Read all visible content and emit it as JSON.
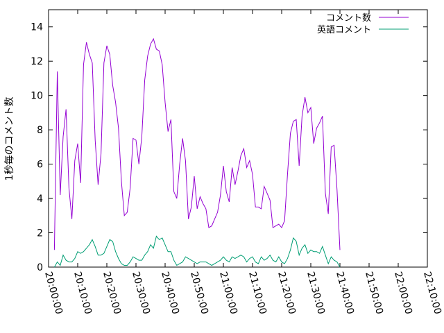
{
  "chart_data": {
    "type": "line",
    "title": "",
    "xlabel": "",
    "ylabel": "1秒毎のコメント数",
    "xlim": [
      "20:00:00",
      "22:10:00"
    ],
    "ylim": [
      0,
      15
    ],
    "x_ticks": [
      "20:00:00",
      "20:10:00",
      "20:20:00",
      "20:30:00",
      "20:40:00",
      "20:50:00",
      "21:00:00",
      "21:10:00",
      "21:20:00",
      "21:30:00",
      "21:40:00",
      "21:50:00",
      "22:00:00",
      "22:10:00"
    ],
    "y_ticks": [
      0,
      2,
      4,
      6,
      8,
      10,
      12,
      14
    ],
    "grid": false,
    "legend_position": "top-right",
    "series": [
      {
        "name": "コメント数",
        "color": "#9400d3",
        "points": [
          [
            "20:02:00",
            1.0
          ],
          [
            "20:03:00",
            11.4
          ],
          [
            "20:04:00",
            4.2
          ],
          [
            "20:05:00",
            7.6
          ],
          [
            "20:06:00",
            9.2
          ],
          [
            "20:07:00",
            4.6
          ],
          [
            "20:08:00",
            2.8
          ],
          [
            "20:09:00",
            6.2
          ],
          [
            "20:10:00",
            7.2
          ],
          [
            "20:11:00",
            4.9
          ],
          [
            "20:12:00",
            11.8
          ],
          [
            "20:13:00",
            13.1
          ],
          [
            "20:14:00",
            12.4
          ],
          [
            "20:15:00",
            11.9
          ],
          [
            "20:16:00",
            7.4
          ],
          [
            "20:17:00",
            4.8
          ],
          [
            "20:18:00",
            6.6
          ],
          [
            "20:19:00",
            11.9
          ],
          [
            "20:20:00",
            12.9
          ],
          [
            "20:21:00",
            12.4
          ],
          [
            "20:22:00",
            10.6
          ],
          [
            "20:23:00",
            9.6
          ],
          [
            "20:24:00",
            8.1
          ],
          [
            "20:25:00",
            5.0
          ],
          [
            "20:26:00",
            3.0
          ],
          [
            "20:27:00",
            3.2
          ],
          [
            "20:28:00",
            4.6
          ],
          [
            "20:29:00",
            7.5
          ],
          [
            "20:30:00",
            7.4
          ],
          [
            "20:31:00",
            6.0
          ],
          [
            "20:32:00",
            7.6
          ],
          [
            "20:33:00",
            10.9
          ],
          [
            "20:34:00",
            12.3
          ],
          [
            "20:35:00",
            13.0
          ],
          [
            "20:36:00",
            13.3
          ],
          [
            "20:37:00",
            12.7
          ],
          [
            "20:38:00",
            12.6
          ],
          [
            "20:39:00",
            11.8
          ],
          [
            "20:40:00",
            9.6
          ],
          [
            "20:41:00",
            7.9
          ],
          [
            "20:42:00",
            8.6
          ],
          [
            "20:43:00",
            4.4
          ],
          [
            "20:44:00",
            4.0
          ],
          [
            "20:45:00",
            6.0
          ],
          [
            "20:46:00",
            7.5
          ],
          [
            "20:47:00",
            6.2
          ],
          [
            "20:48:00",
            2.8
          ],
          [
            "20:49:00",
            3.5
          ],
          [
            "20:50:00",
            5.3
          ],
          [
            "20:51:00",
            3.4
          ],
          [
            "20:52:00",
            4.1
          ],
          [
            "20:53:00",
            3.7
          ],
          [
            "20:54:00",
            3.4
          ],
          [
            "20:55:00",
            2.3
          ],
          [
            "20:56:00",
            2.4
          ],
          [
            "20:57:00",
            2.8
          ],
          [
            "20:58:00",
            3.2
          ],
          [
            "20:59:00",
            4.2
          ],
          [
            "21:00:00",
            5.9
          ],
          [
            "21:01:00",
            4.4
          ],
          [
            "21:02:00",
            3.8
          ],
          [
            "21:03:00",
            5.8
          ],
          [
            "21:04:00",
            4.8
          ],
          [
            "21:05:00",
            5.6
          ],
          [
            "21:06:00",
            6.5
          ],
          [
            "21:07:00",
            6.9
          ],
          [
            "21:08:00",
            5.8
          ],
          [
            "21:09:00",
            6.2
          ],
          [
            "21:10:00",
            5.4
          ],
          [
            "21:11:00",
            3.5
          ],
          [
            "21:12:00",
            3.5
          ],
          [
            "21:13:00",
            3.4
          ],
          [
            "21:14:00",
            4.7
          ],
          [
            "21:15:00",
            4.3
          ],
          [
            "21:16:00",
            3.9
          ],
          [
            "21:17:00",
            2.3
          ],
          [
            "21:18:00",
            2.4
          ],
          [
            "21:19:00",
            2.5
          ],
          [
            "21:20:00",
            2.3
          ],
          [
            "21:21:00",
            2.7
          ],
          [
            "21:22:00",
            5.4
          ],
          [
            "21:23:00",
            7.8
          ],
          [
            "21:24:00",
            8.5
          ],
          [
            "21:25:00",
            8.6
          ],
          [
            "21:26:00",
            5.9
          ],
          [
            "21:27:00",
            8.8
          ],
          [
            "21:28:00",
            9.9
          ],
          [
            "21:29:00",
            9.0
          ],
          [
            "21:30:00",
            9.3
          ],
          [
            "21:31:00",
            7.2
          ],
          [
            "21:32:00",
            8.1
          ],
          [
            "21:33:00",
            8.4
          ],
          [
            "21:34:00",
            8.8
          ],
          [
            "21:35:00",
            4.3
          ],
          [
            "21:36:00",
            3.1
          ],
          [
            "21:37:00",
            7.0
          ],
          [
            "21:38:00",
            7.1
          ],
          [
            "21:39:00",
            4.5
          ],
          [
            "21:40:00",
            1.0
          ]
        ]
      },
      {
        "name": "英語コメント",
        "color": "#009e73",
        "points": [
          [
            "20:02:00",
            0.0
          ],
          [
            "20:03:00",
            0.3
          ],
          [
            "20:04:00",
            0.1
          ],
          [
            "20:05:00",
            0.7
          ],
          [
            "20:06:00",
            0.4
          ],
          [
            "20:07:00",
            0.3
          ],
          [
            "20:08:00",
            0.3
          ],
          [
            "20:09:00",
            0.5
          ],
          [
            "20:10:00",
            0.9
          ],
          [
            "20:11:00",
            0.8
          ],
          [
            "20:12:00",
            0.9
          ],
          [
            "20:13:00",
            1.1
          ],
          [
            "20:14:00",
            1.3
          ],
          [
            "20:15:00",
            1.6
          ],
          [
            "20:16:00",
            1.2
          ],
          [
            "20:17:00",
            0.7
          ],
          [
            "20:18:00",
            0.7
          ],
          [
            "20:19:00",
            0.8
          ],
          [
            "20:20:00",
            1.2
          ],
          [
            "20:21:00",
            1.6
          ],
          [
            "20:22:00",
            1.5
          ],
          [
            "20:23:00",
            0.9
          ],
          [
            "20:24:00",
            0.5
          ],
          [
            "20:25:00",
            0.2
          ],
          [
            "20:26:00",
            0.1
          ],
          [
            "20:27:00",
            0.1
          ],
          [
            "20:28:00",
            0.3
          ],
          [
            "20:29:00",
            0.6
          ],
          [
            "20:30:00",
            0.5
          ],
          [
            "20:31:00",
            0.4
          ],
          [
            "20:32:00",
            0.4
          ],
          [
            "20:33:00",
            0.7
          ],
          [
            "20:34:00",
            0.9
          ],
          [
            "20:35:00",
            1.3
          ],
          [
            "20:36:00",
            1.1
          ],
          [
            "20:37:00",
            1.8
          ],
          [
            "20:38:00",
            1.6
          ],
          [
            "20:39:00",
            1.7
          ],
          [
            "20:40:00",
            1.3
          ],
          [
            "20:41:00",
            0.9
          ],
          [
            "20:42:00",
            0.9
          ],
          [
            "20:43:00",
            0.4
          ],
          [
            "20:44:00",
            0.1
          ],
          [
            "20:45:00",
            0.2
          ],
          [
            "20:46:00",
            0.3
          ],
          [
            "20:47:00",
            0.6
          ],
          [
            "20:48:00",
            0.5
          ],
          [
            "20:49:00",
            0.4
          ],
          [
            "20:50:00",
            0.3
          ],
          [
            "20:51:00",
            0.2
          ],
          [
            "20:52:00",
            0.3
          ],
          [
            "20:53:00",
            0.3
          ],
          [
            "20:54:00",
            0.3
          ],
          [
            "20:55:00",
            0.2
          ],
          [
            "20:56:00",
            0.1
          ],
          [
            "20:57:00",
            0.2
          ],
          [
            "20:58:00",
            0.3
          ],
          [
            "20:59:00",
            0.4
          ],
          [
            "21:00:00",
            0.6
          ],
          [
            "21:01:00",
            0.4
          ],
          [
            "21:02:00",
            0.3
          ],
          [
            "21:03:00",
            0.6
          ],
          [
            "21:04:00",
            0.5
          ],
          [
            "21:05:00",
            0.6
          ],
          [
            "21:06:00",
            0.7
          ],
          [
            "21:07:00",
            0.6
          ],
          [
            "21:08:00",
            0.3
          ],
          [
            "21:09:00",
            0.5
          ],
          [
            "21:10:00",
            0.6
          ],
          [
            "21:11:00",
            0.3
          ],
          [
            "21:12:00",
            0.2
          ],
          [
            "21:13:00",
            0.6
          ],
          [
            "21:14:00",
            0.4
          ],
          [
            "21:15:00",
            0.5
          ],
          [
            "21:16:00",
            0.7
          ],
          [
            "21:17:00",
            0.4
          ],
          [
            "21:18:00",
            0.3
          ],
          [
            "21:19:00",
            0.6
          ],
          [
            "21:20:00",
            0.3
          ],
          [
            "21:21:00",
            0.2
          ],
          [
            "21:22:00",
            0.5
          ],
          [
            "21:23:00",
            1.0
          ],
          [
            "21:24:00",
            1.7
          ],
          [
            "21:25:00",
            1.5
          ],
          [
            "21:26:00",
            0.7
          ],
          [
            "21:27:00",
            1.1
          ],
          [
            "21:28:00",
            1.3
          ],
          [
            "21:29:00",
            0.8
          ],
          [
            "21:30:00",
            1.0
          ],
          [
            "21:31:00",
            0.9
          ],
          [
            "21:32:00",
            0.9
          ],
          [
            "21:33:00",
            0.8
          ],
          [
            "21:34:00",
            1.2
          ],
          [
            "21:35:00",
            0.7
          ],
          [
            "21:36:00",
            0.2
          ],
          [
            "21:37:00",
            0.6
          ],
          [
            "21:38:00",
            0.4
          ],
          [
            "21:39:00",
            0.3
          ],
          [
            "21:40:00",
            0.0
          ]
        ]
      }
    ]
  }
}
